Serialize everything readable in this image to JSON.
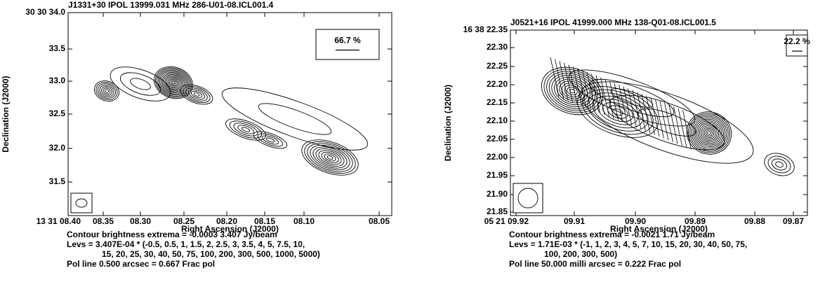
{
  "panels": [
    {
      "title": "J1331+30  IPOL  13999.031 MHz  286-U01-08.ICL001.4",
      "y_axis_label": "Declination (J2000)",
      "x_axis_label": "Right Ascension (J2000)",
      "yticks": [
        "30 30 34.0",
        "33.5",
        "33.0",
        "32.5",
        "32.0",
        "31.5"
      ],
      "xticks": [
        "13 31 08.40",
        "08.35",
        "08.30",
        "08.25",
        "08.20",
        "08.15",
        "08.10",
        "08.05"
      ],
      "pol_label": "66.7 %",
      "caption": [
        "Contour brightness extrema = -0.0003  3.407 Jy/beam",
        "Levs = 3.407E-04 * (-0.5, 0.5, 1, 1.5, 2, 2.5, 3, 3.5, 4, 5, 7.5, 10,",
        "15, 20, 25, 30, 40, 50, 75, 100, 200, 300, 500, 1000, 5000)",
        "Pol line   0.500 arcsec = 0.667 Frac pol"
      ]
    },
    {
      "title": "J0521+16  IPOL  41999.000 MHz  138-Q01-08.ICL001.5",
      "y_axis_label": "Declination (J2000)",
      "x_axis_label": "Right Ascension (J2000)",
      "yticks": [
        "16 38 22.35",
        "22.30",
        "22.25",
        "22.20",
        "22.15",
        "22.10",
        "22.05",
        "22.00",
        "21.95",
        "21.90",
        "21.85"
      ],
      "xticks": [
        "05 21 09.92",
        "09.91",
        "09.90",
        "09.89",
        "09.88",
        "09.87"
      ],
      "pol_label": "22.2 %",
      "caption": [
        "Contour brightness extrema = -0.0021  1.71 Jy/beam",
        "Levs = 1.71E-03 * (-1, 1, 2, 3, 4, 5, 7, 10, 15, 20, 30, 40, 50, 75,",
        "100, 200, 300, 500)",
        "Pol line   50.000 milli arcsec = 0.222 Frac pol"
      ]
    }
  ]
}
